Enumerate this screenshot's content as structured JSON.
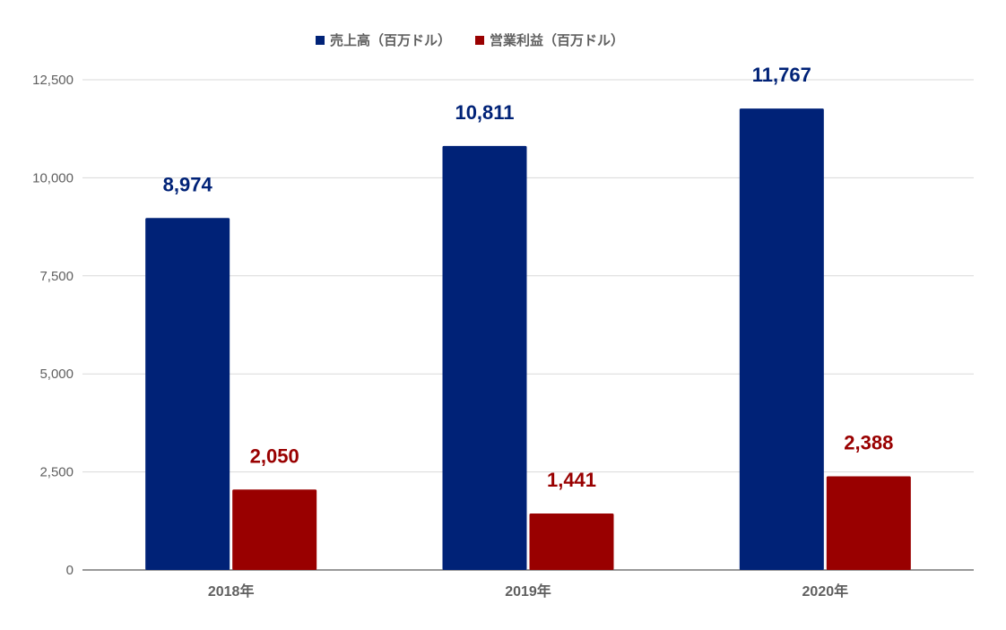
{
  "chart_data": {
    "type": "bar",
    "categories": [
      "2018年",
      "2019年",
      "2020年"
    ],
    "series": [
      {
        "name": "売上高（百万ドル）",
        "values": [
          8974,
          10811,
          11767
        ],
        "color": "#002277"
      },
      {
        "name": "営業利益（百万ドル）",
        "values": [
          2050,
          1441,
          2388
        ],
        "color": "#990000"
      }
    ],
    "data_labels": [
      [
        "8,974",
        "10,811",
        "11,767"
      ],
      [
        "2,050",
        "1,441",
        "2,388"
      ]
    ],
    "yticks": [
      0,
      2500,
      5000,
      7500,
      10000,
      12500
    ],
    "ytick_labels": [
      "0",
      "2,500",
      "5,000",
      "7,500",
      "10,000",
      "12,500"
    ],
    "ylim": [
      0,
      12500
    ],
    "grid": true,
    "legend_position": "top-center",
    "title": "",
    "xlabel": "",
    "ylabel": ""
  }
}
